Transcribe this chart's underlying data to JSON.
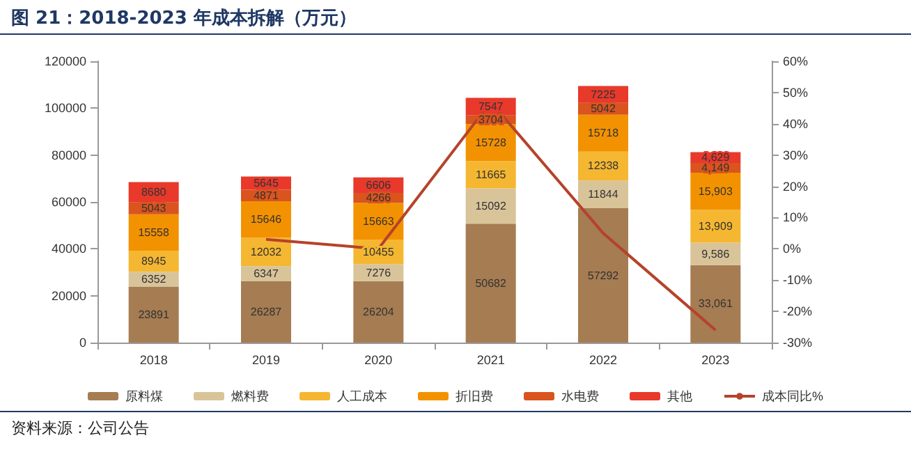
{
  "chart_data": {
    "type": "bar",
    "title": "图 21：2018-2023 年成本拆解（万元）",
    "annotations": [
      "资料来源：公司公告"
    ],
    "categories": [
      "2018",
      "2019",
      "2020",
      "2021",
      "2022",
      "2023"
    ],
    "stacked": true,
    "series": [
      {
        "name": "原料煤",
        "color": "#a67c52",
        "values": [
          23891,
          26287,
          26204,
          50682,
          57292,
          33061
        ],
        "value_labels": [
          "23891",
          "26287",
          "26204",
          "50682",
          "57292",
          "33,061"
        ]
      },
      {
        "name": "燃料费",
        "color": "#d9c49a",
        "values": [
          6352,
          6347,
          7276,
          15092,
          11844,
          9586
        ],
        "value_labels": [
          "6352",
          "6347",
          "7276",
          "15092",
          "11844",
          "9,586"
        ]
      },
      {
        "name": "人工成本",
        "color": "#f5b731",
        "values": [
          8945,
          12032,
          10455,
          11665,
          12338,
          13909
        ],
        "value_labels": [
          "8945",
          "12032",
          "10455",
          "11665",
          "12338",
          "13,909"
        ]
      },
      {
        "name": "折旧费",
        "color": "#f39200",
        "values": [
          15558,
          15646,
          15663,
          15728,
          15718,
          15903
        ],
        "value_labels": [
          "15558",
          "15646",
          "15663",
          "15728",
          "15718",
          "15,903"
        ]
      },
      {
        "name": "水电费",
        "color": "#d9541e",
        "values": [
          5043,
          4871,
          4266,
          3704,
          5042,
          4149
        ],
        "value_labels": [
          "5043",
          "4871",
          "4266",
          "3704",
          "5042",
          "4,149"
        ]
      },
      {
        "name": "其他",
        "color": "#e8392b",
        "values": [
          8680,
          5645,
          6606,
          7547,
          7225,
          4629
        ],
        "value_labels": [
          "8680",
          "5645",
          "6606",
          "7547",
          "7225",
          "4,629"
        ]
      },
      {
        "name": "成本同比%",
        "type": "line",
        "axis": "y2",
        "color": "#b5432a",
        "values": [
          null,
          3,
          0,
          47,
          5,
          -26
        ]
      }
    ],
    "ylim": [
      0,
      120000
    ],
    "yticks": [
      0,
      20000,
      40000,
      60000,
      80000,
      100000,
      120000
    ],
    "y2lim": [
      -30,
      60
    ],
    "y2ticks": [
      {
        "value": -30,
        "label": "-30%"
      },
      {
        "value": -20,
        "label": "-20%"
      },
      {
        "value": -10,
        "label": "-10%"
      },
      {
        "value": 0,
        "label": "0%"
      },
      {
        "value": 10,
        "label": "10%"
      },
      {
        "value": 20,
        "label": "20%"
      },
      {
        "value": 30,
        "label": "30%"
      },
      {
        "value": 40,
        "label": "40%"
      },
      {
        "value": 50,
        "label": "50%"
      },
      {
        "value": 60,
        "label": "60%"
      }
    ],
    "grid": false,
    "legend": "bottom",
    "marker": "none",
    "line_style": "solid"
  }
}
